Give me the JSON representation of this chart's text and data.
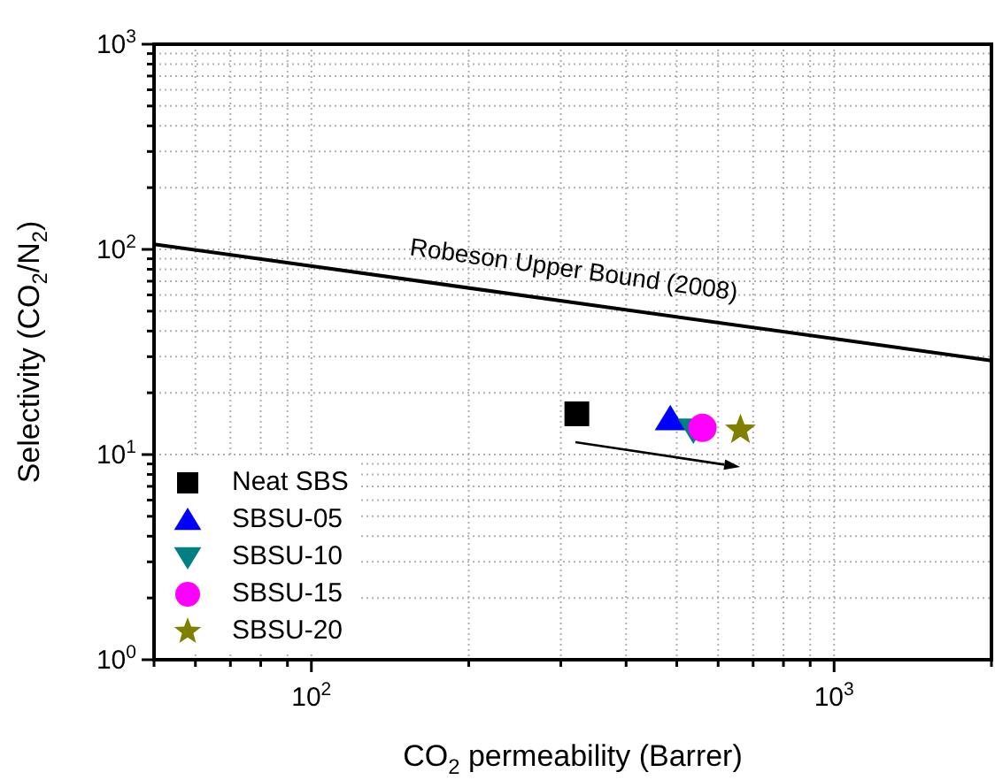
{
  "chart_data": {
    "type": "scatter",
    "xlabel": "CO$_{2}$ permeability (Barrer)",
    "ylabel": "Selectivity (CO$_{2}$/N$_{2}$)",
    "log": "xy",
    "grid": true,
    "legend": "bottom left",
    "xlim": [
      50,
      2000
    ],
    "ylim": [
      1,
      1000
    ],
    "xticks": [
      {
        "value": 50,
        "label": null
      },
      {
        "value": 60,
        "label": null
      },
      {
        "value": 70,
        "label": null
      },
      {
        "value": 80,
        "label": null
      },
      {
        "value": 90,
        "label": null
      },
      {
        "value": 100,
        "label": "10$^{2}$"
      },
      {
        "value": 200,
        "label": null
      },
      {
        "value": 300,
        "label": null
      },
      {
        "value": 400,
        "label": null
      },
      {
        "value": 500,
        "label": null
      },
      {
        "value": 600,
        "label": null
      },
      {
        "value": 700,
        "label": null
      },
      {
        "value": 800,
        "label": null
      },
      {
        "value": 900,
        "label": null
      },
      {
        "value": 1000,
        "label": "10$^{3}$"
      },
      {
        "value": 2000,
        "label": null
      }
    ],
    "yticks": [
      {
        "value": 1,
        "label": "10$^{0}$"
      },
      {
        "value": 2,
        "label": null
      },
      {
        "value": 3,
        "label": null
      },
      {
        "value": 4,
        "label": null
      },
      {
        "value": 5,
        "label": null
      },
      {
        "value": 6,
        "label": null
      },
      {
        "value": 7,
        "label": null
      },
      {
        "value": 8,
        "label": null
      },
      {
        "value": 9,
        "label": null
      },
      {
        "value": 10,
        "label": "10$^{1}$"
      },
      {
        "value": 20,
        "label": null
      },
      {
        "value": 30,
        "label": null
      },
      {
        "value": 40,
        "label": null
      },
      {
        "value": 50,
        "label": null
      },
      {
        "value": 60,
        "label": null
      },
      {
        "value": 70,
        "label": null
      },
      {
        "value": 80,
        "label": null
      },
      {
        "value": 90,
        "label": null
      },
      {
        "value": 100,
        "label": "10$^{2}$"
      },
      {
        "value": 200,
        "label": null
      },
      {
        "value": 300,
        "label": null
      },
      {
        "value": 400,
        "label": null
      },
      {
        "value": 500,
        "label": null
      },
      {
        "value": 600,
        "label": null
      },
      {
        "value": 700,
        "label": null
      },
      {
        "value": 800,
        "label": null
      },
      {
        "value": 900,
        "label": null
      },
      {
        "value": 1000,
        "label": "10$^{3}$"
      }
    ],
    "series": [
      {
        "name": "Robeson Upper Bound (2008)",
        "type": "line",
        "color": "#000000",
        "x": [
          50,
          2000
        ],
        "values": [
          106,
          28.7
        ],
        "marker": "none",
        "line_style": "solid"
      },
      {
        "name": "Neat SBS",
        "color": "#000000",
        "marker": "square",
        "x": [
          322
        ],
        "values": [
          15.8
        ]
      },
      {
        "name": "SBSU-05",
        "color": "#0000ff",
        "marker": "triangle",
        "x": [
          486
        ],
        "values": [
          14.9
        ]
      },
      {
        "name": "SBSU-10",
        "color": "#008080",
        "marker": "triangle-down",
        "x": [
          538
        ],
        "values": [
          13.2
        ]
      },
      {
        "name": "SBSU-15",
        "color": "#ff00ff",
        "marker": "circle",
        "x": [
          560
        ],
        "values": [
          13.5
        ]
      },
      {
        "name": "SBSU-20",
        "color": "#808000",
        "marker": "star",
        "x": [
          662
        ],
        "values": [
          13.2
        ]
      }
    ]
  }
}
